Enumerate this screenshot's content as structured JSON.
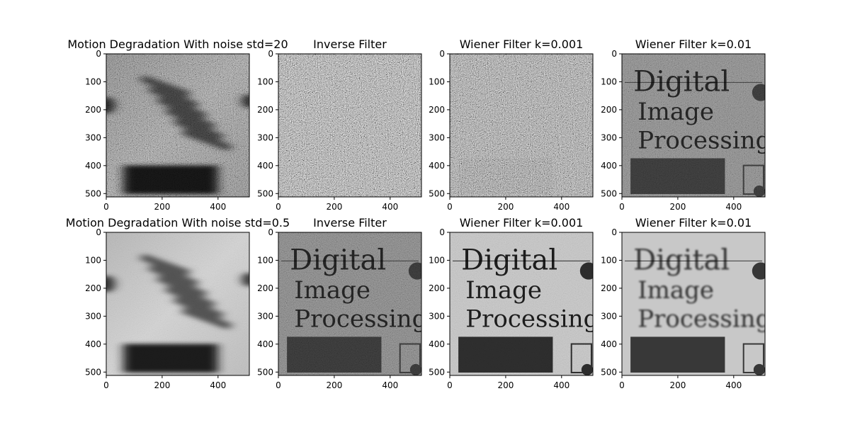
{
  "figure": {
    "background": "#ffffff",
    "colormap": "gray"
  },
  "chart_data": [
    {
      "type": "image",
      "title": "Motion Degradation With noise std=20",
      "xlim": [
        0,
        512
      ],
      "ylim": [
        512,
        0
      ],
      "xticks": [
        0,
        200,
        400
      ],
      "yticks": [
        0,
        100,
        200,
        300,
        400,
        500
      ],
      "content": "motion-blurred-heavy-noise"
    },
    {
      "type": "image",
      "title": "Inverse Filter",
      "xlim": [
        0,
        512
      ],
      "ylim": [
        512,
        0
      ],
      "xticks": [
        0,
        200,
        400
      ],
      "yticks": [
        0,
        100,
        200,
        300,
        400,
        500
      ],
      "content": "pure-noise"
    },
    {
      "type": "image",
      "title": "Wiener Filter k=0.001",
      "xlim": [
        0,
        512
      ],
      "ylim": [
        512,
        0
      ],
      "xticks": [
        0,
        200,
        400
      ],
      "yticks": [
        0,
        100,
        200,
        300,
        400,
        500
      ],
      "content": "faint-text-heavy-noise"
    },
    {
      "type": "image",
      "title": "Wiener Filter k=0.01",
      "xlim": [
        0,
        512
      ],
      "ylim": [
        512,
        0
      ],
      "xticks": [
        0,
        200,
        400
      ],
      "yticks": [
        0,
        100,
        200,
        300,
        400,
        500
      ],
      "content": "text-moderate-noise",
      "image_text": [
        "Digital",
        "Image",
        "Processing"
      ]
    },
    {
      "type": "image",
      "title": "Motion Degradation With noise std=0.5",
      "xlim": [
        0,
        512
      ],
      "ylim": [
        512,
        0
      ],
      "xticks": [
        0,
        200,
        400
      ],
      "yticks": [
        0,
        100,
        200,
        300,
        400,
        500
      ],
      "content": "motion-blurred-light-noise"
    },
    {
      "type": "image",
      "title": "Inverse Filter",
      "xlim": [
        0,
        512
      ],
      "ylim": [
        512,
        0
      ],
      "xticks": [
        0,
        200,
        400
      ],
      "yticks": [
        0,
        100,
        200,
        300,
        400,
        500
      ],
      "content": "text-light-noise",
      "image_text": [
        "Digital",
        "Image",
        "Processing"
      ]
    },
    {
      "type": "image",
      "title": "Wiener Filter k=0.001",
      "xlim": [
        0,
        512
      ],
      "ylim": [
        512,
        0
      ],
      "xticks": [
        0,
        200,
        400
      ],
      "yticks": [
        0,
        100,
        200,
        300,
        400,
        500
      ],
      "content": "text-clear",
      "image_text": [
        "Digital",
        "Image",
        "Processing"
      ]
    },
    {
      "type": "image",
      "title": "Wiener Filter k=0.01",
      "xlim": [
        0,
        512
      ],
      "ylim": [
        512,
        0
      ],
      "xticks": [
        0,
        200,
        400
      ],
      "yticks": [
        0,
        100,
        200,
        300,
        400,
        500
      ],
      "content": "text-smooth",
      "image_text": [
        "Digital",
        "Image",
        "Processing"
      ]
    }
  ]
}
